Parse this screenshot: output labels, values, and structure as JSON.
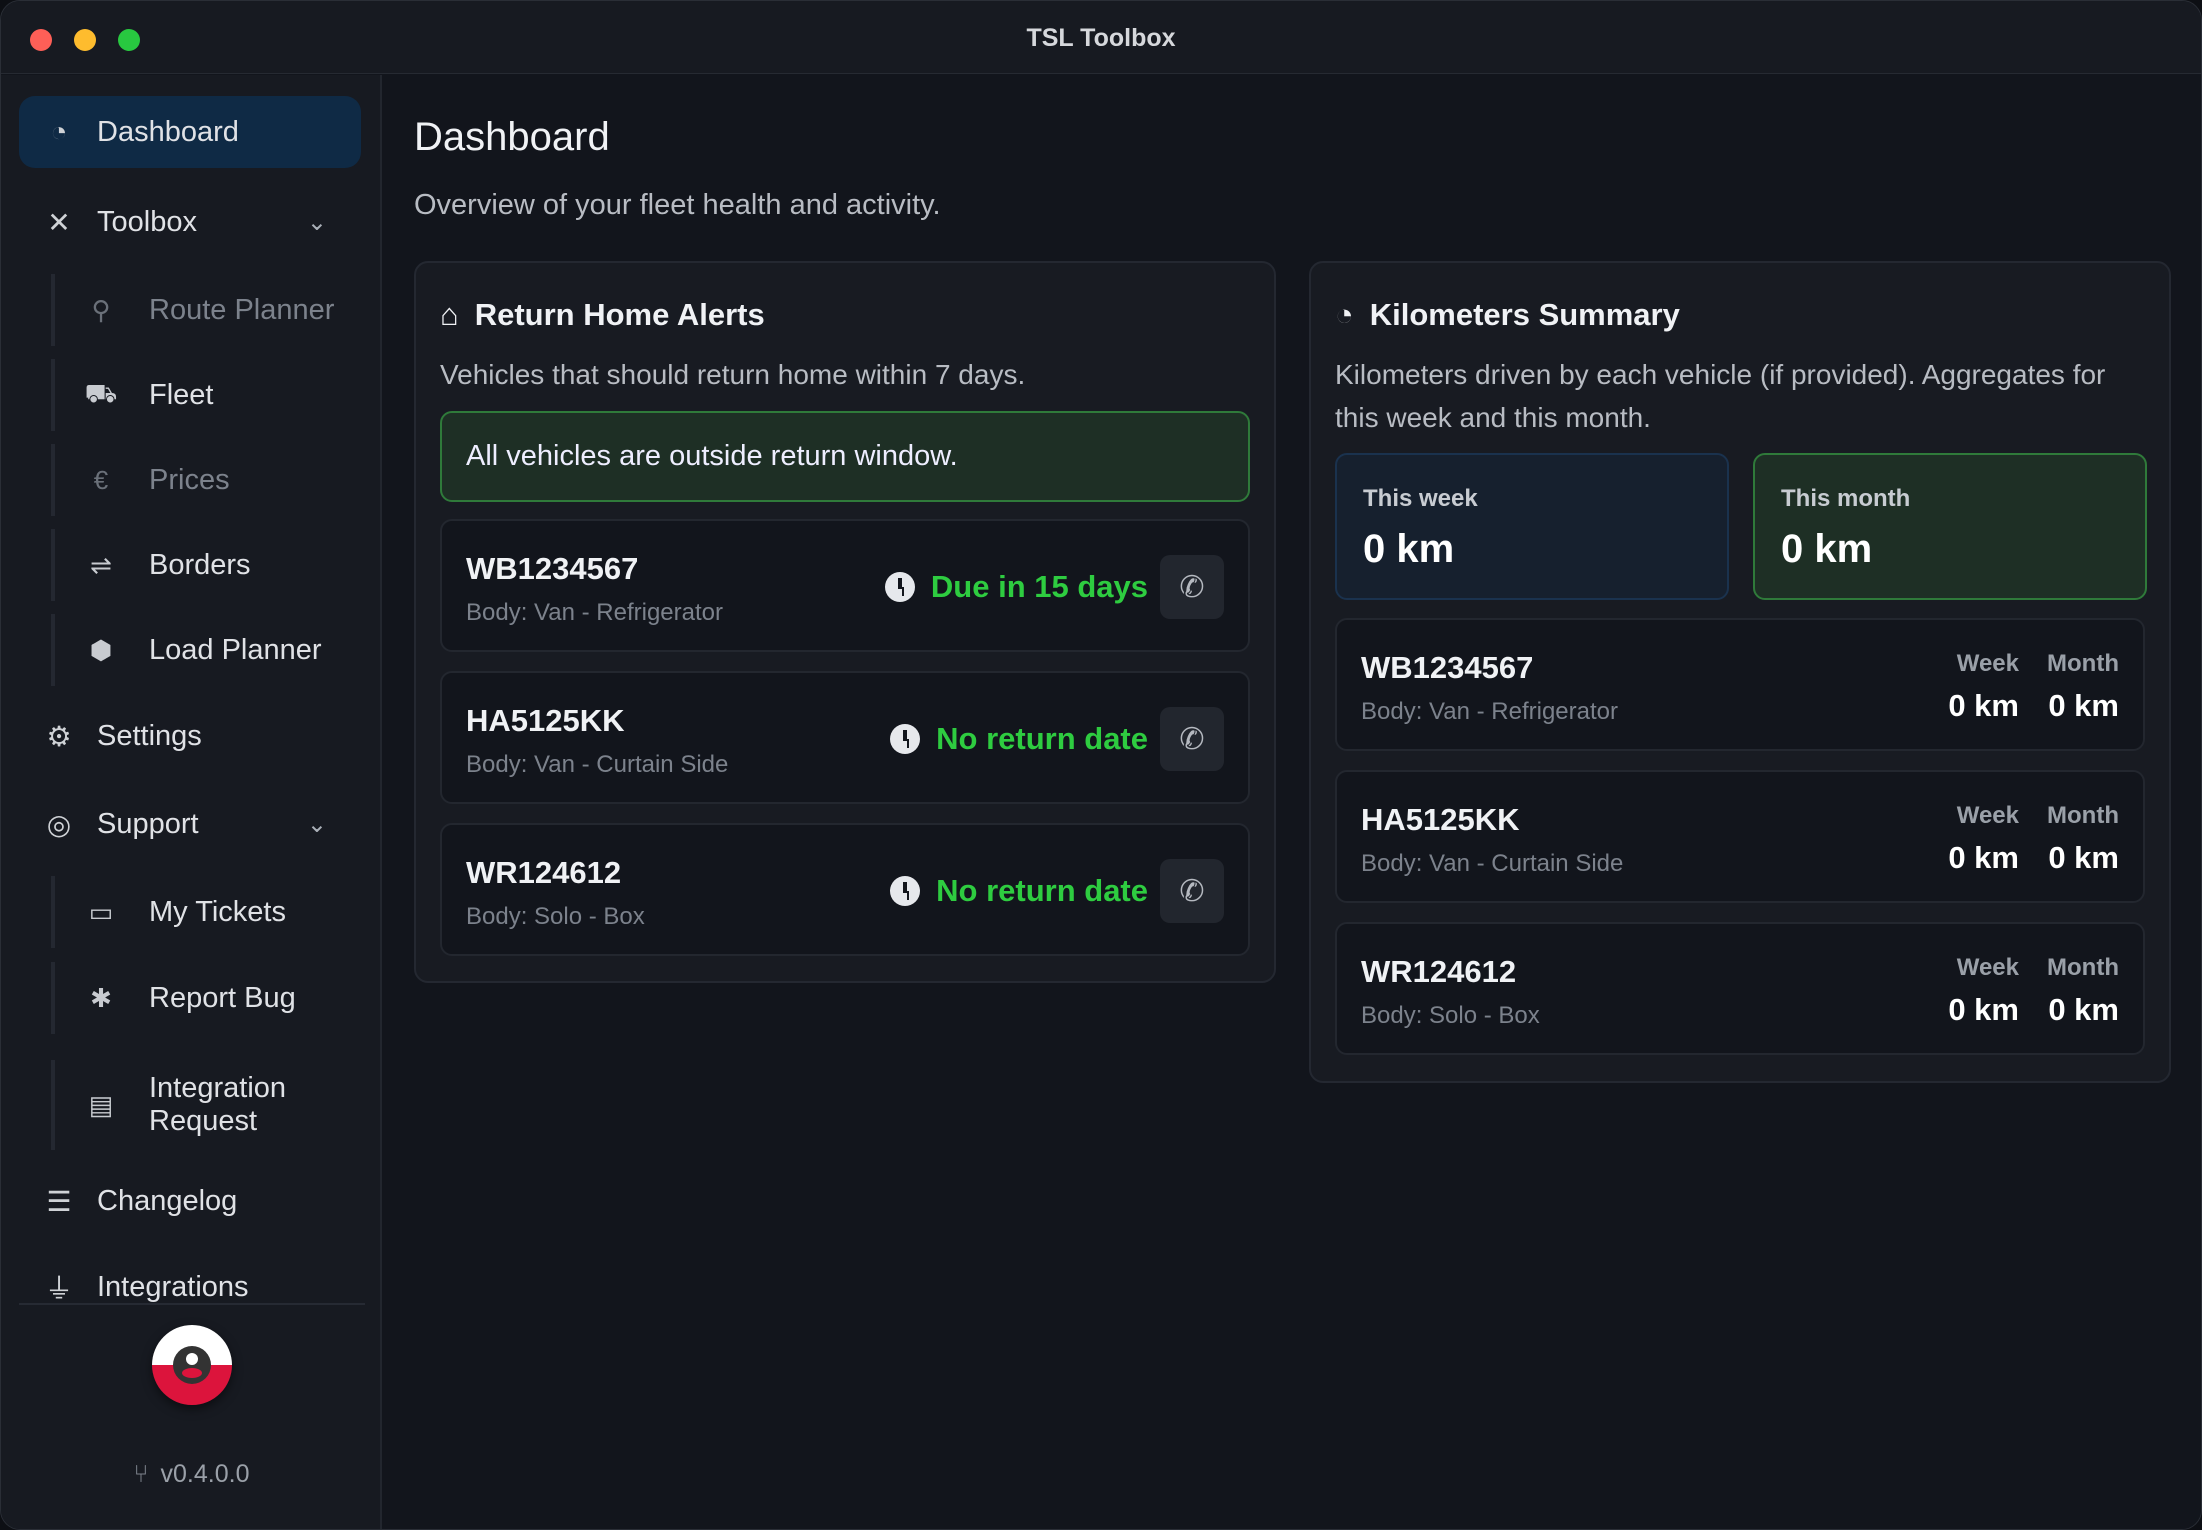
{
  "window": {
    "title": "TSL Toolbox"
  },
  "sidebar": {
    "items": [
      {
        "label": "Dashboard",
        "icon": "gauge-icon"
      },
      {
        "label": "Toolbox",
        "icon": "tools-icon"
      },
      {
        "label": "Route Planner",
        "icon": "route-icon"
      },
      {
        "label": "Fleet",
        "icon": "truck-icon"
      },
      {
        "label": "Prices",
        "icon": "euro-icon"
      },
      {
        "label": "Borders",
        "icon": "signpost-icon"
      },
      {
        "label": "Load Planner",
        "icon": "box-icon"
      },
      {
        "label": "Settings",
        "icon": "gear-icon"
      },
      {
        "label": "Support",
        "icon": "lifering-icon"
      },
      {
        "label": "My Tickets",
        "icon": "ticket-icon"
      },
      {
        "label": "Report Bug",
        "icon": "bug-icon"
      },
      {
        "label": "Integration Request",
        "icon": "file-icon"
      },
      {
        "label": "Changelog",
        "icon": "list-icon"
      },
      {
        "label": "Integrations",
        "icon": "plug-icon"
      }
    ],
    "version": "v0.4.0.0"
  },
  "main": {
    "title": "Dashboard",
    "subtitle": "Overview of your fleet health and activity.",
    "alerts": {
      "title": "Return Home Alerts",
      "description": "Vehicles that should return home within 7 days.",
      "status": "All vehicles are outside return window.",
      "vehicles": [
        {
          "plate": "WB1234567",
          "body": "Body: Van - Refrigerator",
          "due": "Due in 15 days"
        },
        {
          "plate": "HA5125KK",
          "body": "Body: Van - Curtain Side",
          "due": "No return date"
        },
        {
          "plate": "WR124612",
          "body": "Body: Solo - Box",
          "due": "No return date"
        }
      ]
    },
    "km": {
      "title": "Kilometers Summary",
      "description": "Kilometers driven by each vehicle (if provided). Aggregates for this week and this month.",
      "week_label": "This week",
      "week_value": "0 km",
      "month_label": "This month",
      "month_value": "0 km",
      "col_week": "Week",
      "col_month": "Month",
      "vehicles": [
        {
          "plate": "WB1234567",
          "body": "Body: Van - Refrigerator",
          "week": "0 km",
          "month": "0 km"
        },
        {
          "plate": "HA5125KK",
          "body": "Body: Van - Curtain Side",
          "week": "0 km",
          "month": "0 km"
        },
        {
          "plate": "WR124612",
          "body": "Body: Solo - Box",
          "week": "0 km",
          "month": "0 km"
        }
      ]
    }
  },
  "colors": {
    "accent": "#0f2a45",
    "success": "#2ecc40",
    "success_bg": "#1e2f25"
  }
}
